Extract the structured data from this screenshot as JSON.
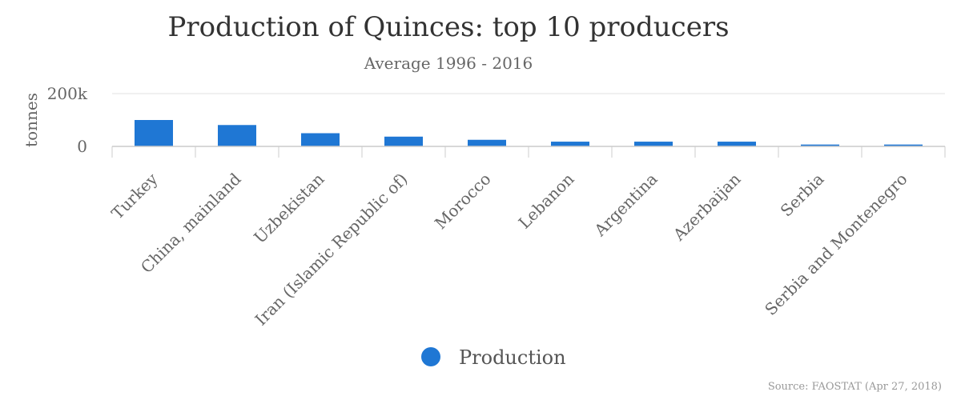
{
  "chart_data": {
    "type": "bar",
    "title": "Production of Quinces: top 10 producers",
    "subtitle": "Average 1996 - 2016",
    "ylabel": "tonnes",
    "xlabel": "",
    "ylim": [
      0,
      200000
    ],
    "yticks": [
      {
        "value": 0,
        "label": "0"
      },
      {
        "value": 200000,
        "label": "200k"
      }
    ],
    "grid": true,
    "legend_position": "bottom-center",
    "categories": [
      "Turkey",
      "China, mainland",
      "Uzbekistan",
      "Iran (Islamic Republic of)",
      "Morocco",
      "Lebanon",
      "Argentina",
      "Azerbaijan",
      "Serbia",
      "Serbia and Montenegro"
    ],
    "series": [
      {
        "name": "Production",
        "color": "#1f77d4",
        "values": [
          100000,
          81000,
          50000,
          37000,
          25000,
          18000,
          18000,
          18000,
          7000,
          7000
        ]
      }
    ],
    "source": "Source: FAOSTAT (Apr 27, 2018)"
  }
}
